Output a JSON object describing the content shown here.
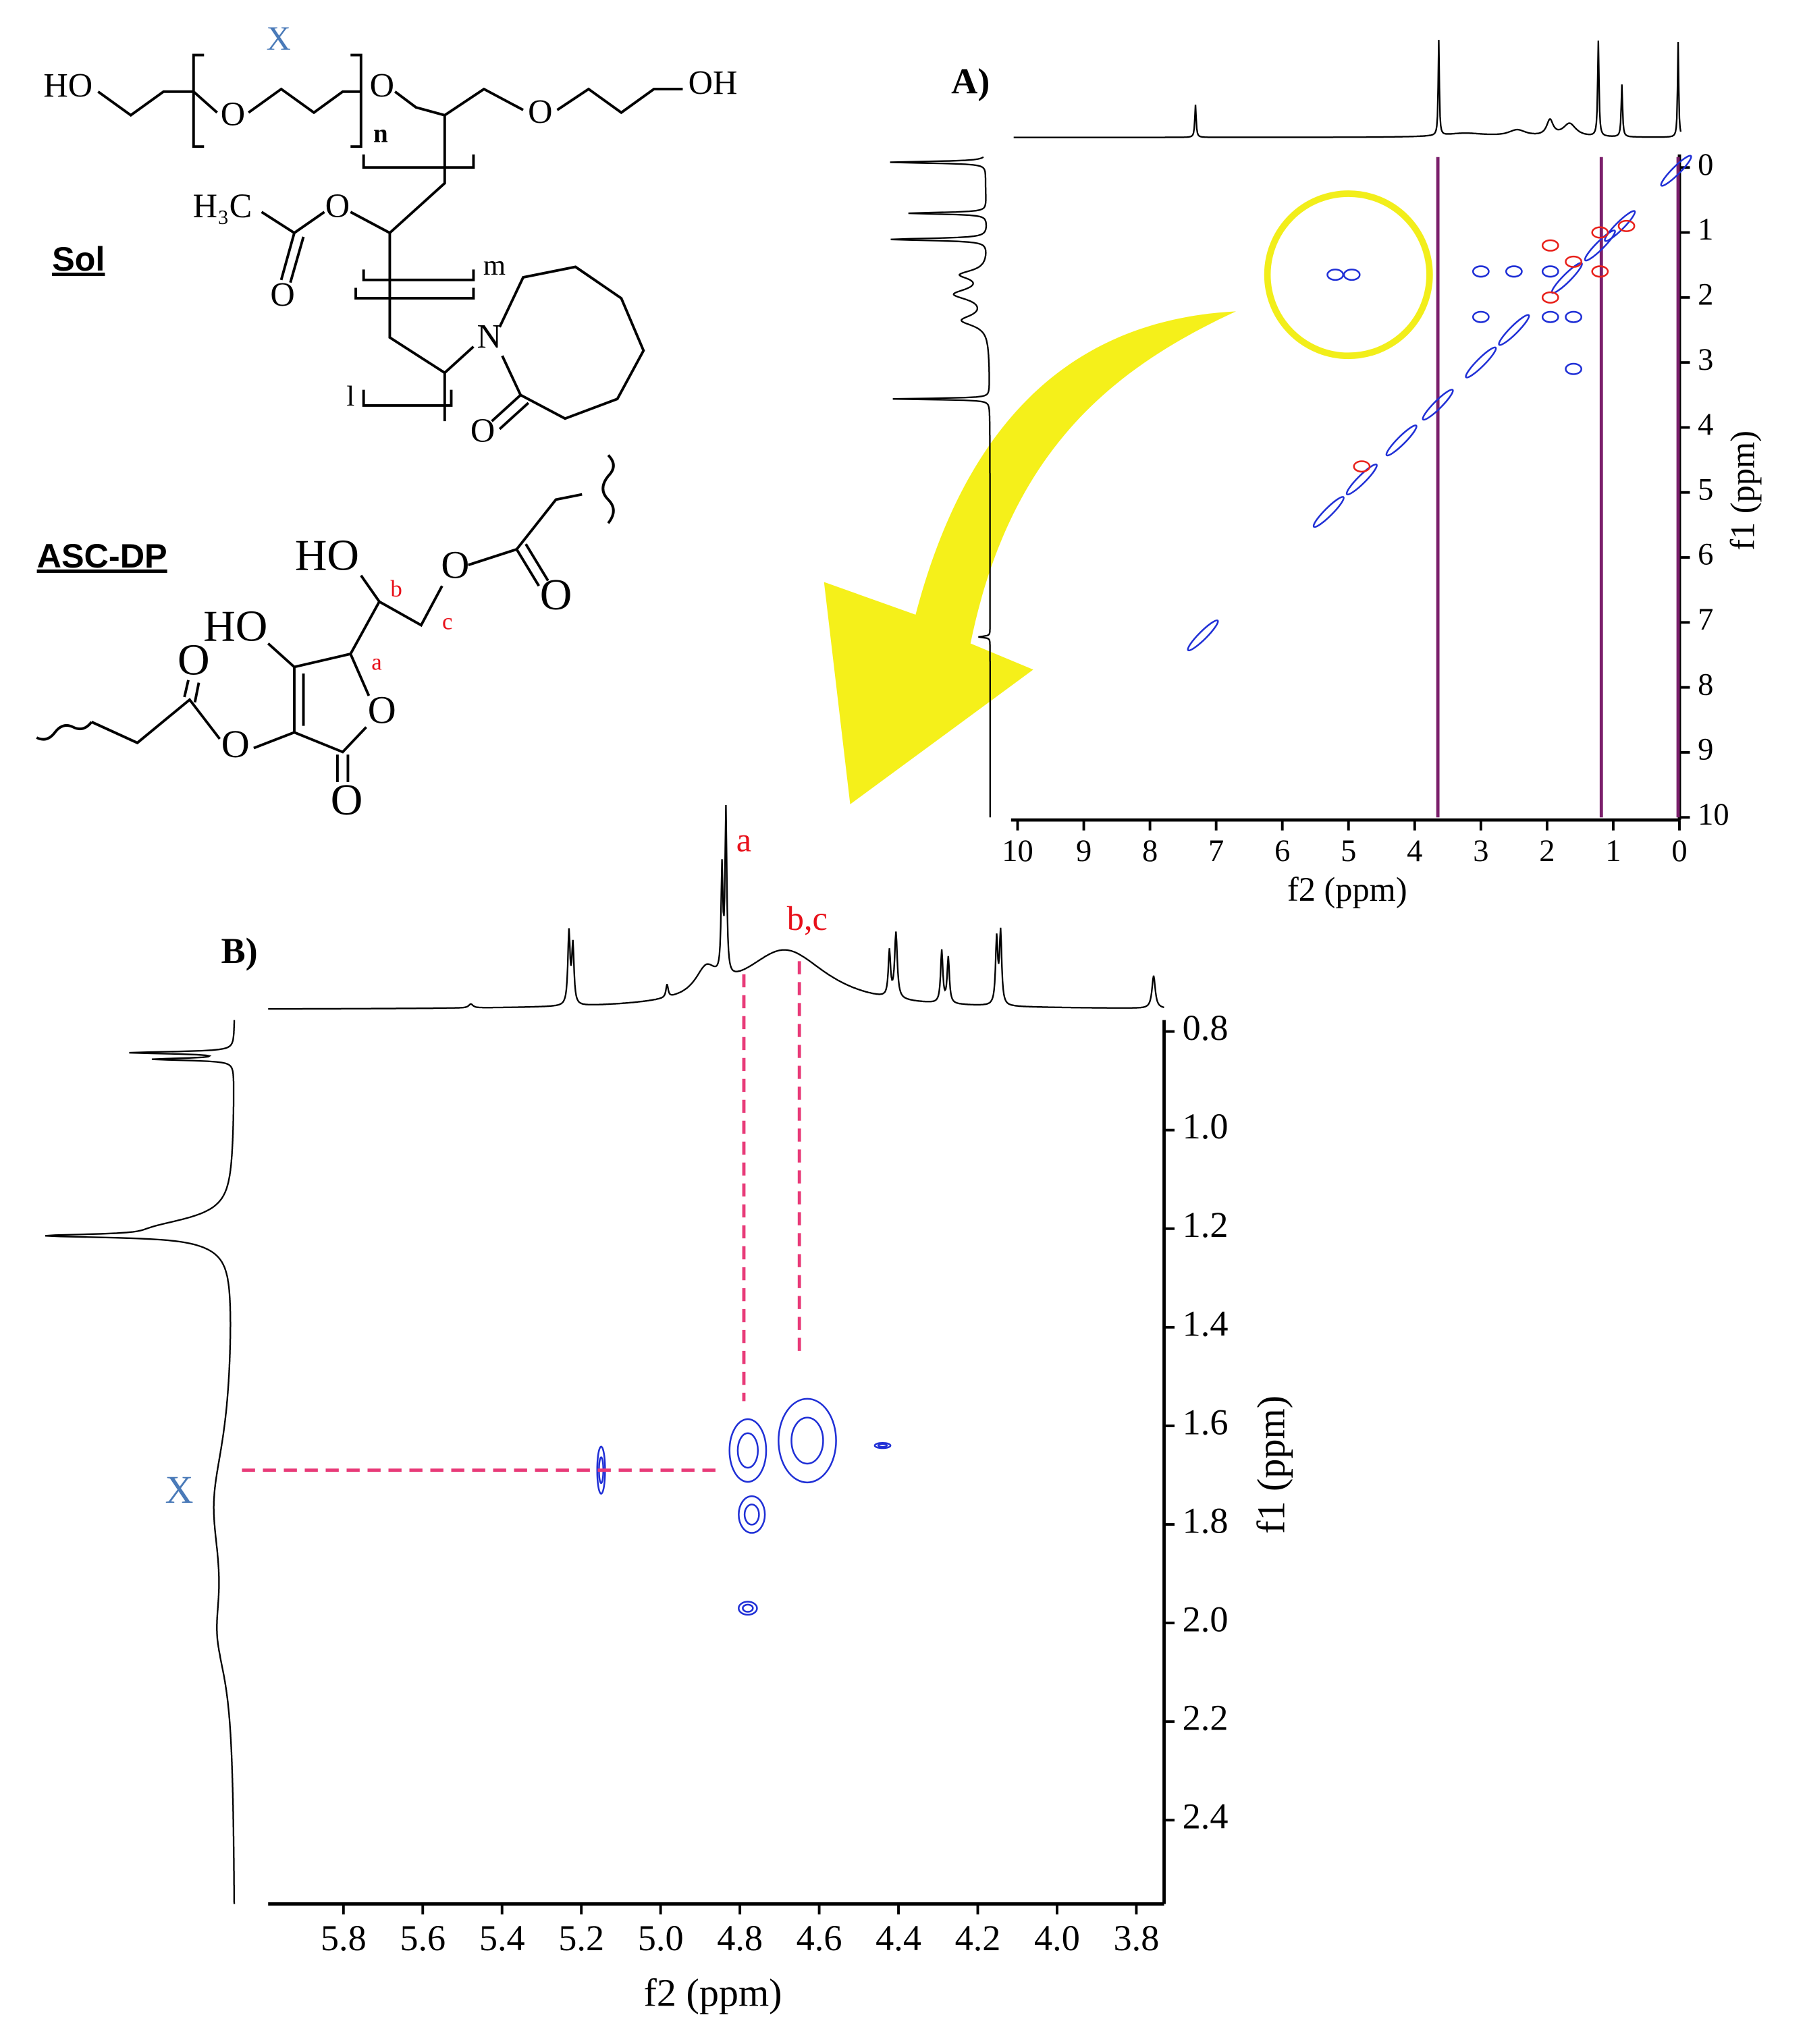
{
  "structures": {
    "sol": {
      "label": "Sol",
      "atoms": [
        "X",
        "HO",
        "O",
        "O",
        "n",
        "O",
        "OH",
        "H₃C",
        "O",
        "O",
        "m",
        "N",
        "l",
        "O"
      ]
    },
    "asc_dp": {
      "label": "ASC-DP",
      "atoms": [
        "HO",
        "b",
        "O",
        "O",
        "HO",
        "a",
        "c",
        "O",
        "O",
        "O",
        "O"
      ]
    }
  },
  "chart_data": [
    {
      "type": "contour",
      "title": "A)",
      "x_label": "f2 (ppm)",
      "y_label": "f1 (ppm)",
      "xlim": [
        10,
        0
      ],
      "ylim": [
        10,
        0
      ],
      "xticks": [
        10,
        9,
        8,
        7,
        6,
        5,
        4,
        3,
        2,
        1,
        0
      ],
      "yticks": [
        0,
        1,
        2,
        3,
        4,
        5,
        6,
        7,
        8,
        9,
        10
      ],
      "series": [
        {
          "color": "#1f2fd6",
          "x": [
            5.2,
            4.95,
            3.0,
            2.5,
            1.95,
            1.95,
            3.0,
            1.6,
            2.5,
            3.0,
            1.6,
            4.2,
            4.8,
            5.3,
            3.65,
            1.7,
            1.2,
            0.9,
            0.05,
            7.2
          ],
          "y": [
            1.65,
            1.65,
            1.6,
            1.6,
            1.6,
            2.3,
            2.3,
            2.3,
            2.5,
            3.0,
            3.1,
            4.2,
            4.8,
            5.3,
            3.65,
            1.7,
            1.2,
            0.9,
            0.05,
            7.2
          ]
        },
        {
          "color": "#e8201a",
          "x": [
            1.95,
            1.2,
            0.8,
            1.2,
            1.95,
            1.6,
            4.8
          ],
          "y": [
            2.0,
            1.0,
            0.9,
            1.6,
            1.2,
            1.45,
            4.6
          ]
        }
      ],
      "t1_noise_x": [
        3.65,
        1.18,
        0.02
      ],
      "t1_noise_color": "#7b1f6b",
      "highlight": {
        "x": 5.0,
        "y": 1.65,
        "color": "#f2ee1a"
      }
    },
    {
      "type": "contour",
      "title": "B)",
      "x_label": "f2 (ppm)",
      "y_label": "f1 (ppm)",
      "xlim": [
        5.99,
        3.73
      ],
      "ylim": [
        2.57,
        0.79
      ],
      "xticks": [
        5.8,
        5.6,
        5.4,
        5.2,
        {
          "value": 5,
          "label": "5.0"
        },
        4.8,
        4.6,
        4.4,
        4.2,
        {
          "value": 4,
          "label": "4.0"
        },
        3.8
      ],
      "yticks": [
        0.8,
        {
          "value": 1,
          "label": "1.0"
        },
        1.2,
        1.4,
        1.6,
        1.8,
        {
          "value": 2,
          "label": "2.0"
        },
        2.2,
        2.4
      ],
      "series": [
        {
          "color": "#1f2fd6",
          "x": [
            5.15,
            4.78,
            4.77,
            4.63,
            4.78,
            4.44
          ],
          "y": [
            1.69,
            1.65,
            1.78,
            1.63,
            1.97,
            1.64
          ]
        }
      ],
      "guide_color": "#e83a78",
      "annotations": [
        {
          "text": "a",
          "color": "#e8101a",
          "x": 4.79,
          "y": 1.55
        },
        {
          "text": "b,c",
          "color": "#e8101a",
          "x": 4.65,
          "y": 1.46
        },
        {
          "text": "X",
          "color": "#4a7ab8",
          "x": 4.85,
          "y": 1.69
        }
      ]
    }
  ]
}
